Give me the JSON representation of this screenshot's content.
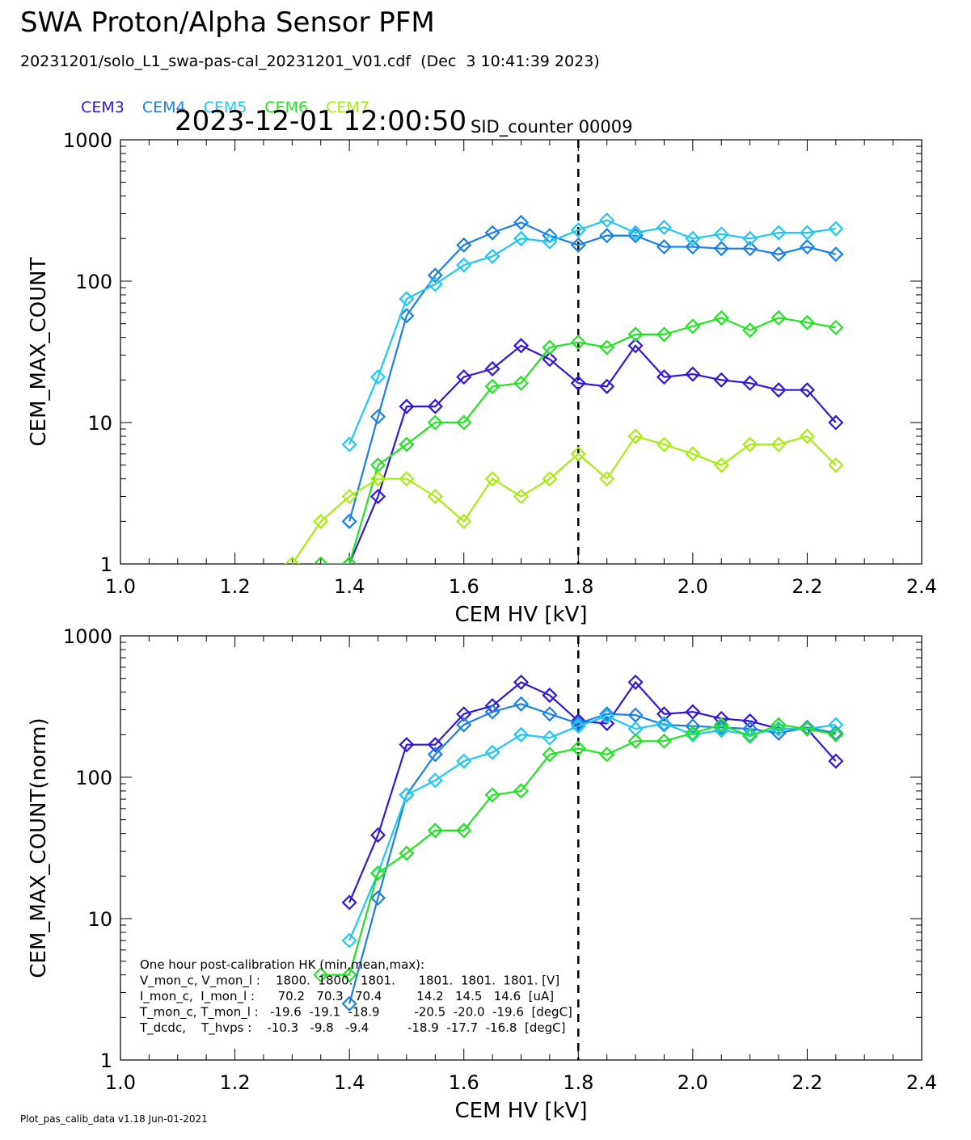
{
  "header": {
    "title": "SWA Proton/Alpha Sensor PFM",
    "file_line": "20231201/solo_L1_swa-pas-cal_20231201_V01.cdf  (Dec  3 10:41:39 2023)",
    "timestamp": "2023-12-01 12:00:50",
    "sid_counter": "SID_counter 00009"
  },
  "legend": [
    {
      "label": "CEM3",
      "color": "#3316d8"
    },
    {
      "label": "CEM4",
      "color": "#1a7fe6"
    },
    {
      "label": "CEM5",
      "color": "#1ec8f0"
    },
    {
      "label": "CEM6",
      "color": "#22e422"
    },
    {
      "label": "CEM7",
      "color": "#a6ee10"
    }
  ],
  "footer": "Plot_pas_calib_data v1.18 Jun-01-2021",
  "hk_box": {
    "lines": [
      "One hour post-calibration HK (min,mean,max):",
      "V_mon_c, V_mon_l :    1800.  1800.  1801.      1801.  1801.  1801. [V]",
      "I_mon_c,  I_mon_l :      70.2   70.3   70.4         14.2   14.5   14.6  [uA]",
      "T_mon_c, T_mon_l :   -19.6  -19.1  -18.9         -20.5  -20.0  -19.6  [degC]",
      "T_dcdc,    T_hvps :    -10.3   -9.8   -9.4          -18.9  -17.7  -16.8  [degC]"
    ]
  },
  "chart_data": [
    {
      "type": "line",
      "xlabel": "CEM HV [kV]",
      "ylabel": "CEM_MAX_COUNT",
      "xlim": [
        1.0,
        2.4
      ],
      "ylim": [
        1,
        1000
      ],
      "yscale": "log",
      "x_ticks": [
        "1.0",
        "1.2",
        "1.4",
        "1.6",
        "1.8",
        "2.0",
        "2.2",
        "2.4"
      ],
      "y_ticks": [
        "1",
        "10",
        "100",
        "1000"
      ],
      "marker": "diamond",
      "vline_x": 1.8,
      "series": [
        {
          "name": "CEM3",
          "color": "#3316d8",
          "x": [
            1.4,
            1.45,
            1.5,
            1.55,
            1.6,
            1.65,
            1.7,
            1.75,
            1.8,
            1.85,
            1.9,
            1.95,
            2.0,
            2.05,
            2.1,
            2.15,
            2.2,
            2.25
          ],
          "y": [
            1,
            3,
            13,
            13,
            21,
            24,
            35,
            28,
            19,
            18,
            35,
            21,
            22,
            20,
            19,
            17,
            17,
            10
          ]
        },
        {
          "name": "CEM4",
          "color": "#1a7fe6",
          "x": [
            1.4,
            1.45,
            1.5,
            1.55,
            1.6,
            1.65,
            1.7,
            1.75,
            1.8,
            1.85,
            1.9,
            1.95,
            2.0,
            2.05,
            2.1,
            2.15,
            2.2,
            2.25
          ],
          "y": [
            2,
            11,
            57,
            110,
            180,
            220,
            260,
            210,
            180,
            210,
            210,
            175,
            175,
            170,
            170,
            155,
            175,
            155
          ]
        },
        {
          "name": "CEM5",
          "color": "#1ec8f0",
          "x": [
            1.4,
            1.45,
            1.5,
            1.55,
            1.6,
            1.65,
            1.7,
            1.75,
            1.8,
            1.85,
            1.9,
            1.95,
            2.0,
            2.05,
            2.1,
            2.15,
            2.2,
            2.25
          ],
          "y": [
            7,
            21,
            75,
            95,
            130,
            150,
            200,
            190,
            230,
            270,
            220,
            240,
            200,
            215,
            200,
            220,
            220,
            235
          ]
        },
        {
          "name": "CEM6",
          "color": "#22e422",
          "x": [
            1.35,
            1.4,
            1.45,
            1.5,
            1.55,
            1.6,
            1.65,
            1.7,
            1.75,
            1.8,
            1.85,
            1.9,
            1.95,
            2.0,
            2.05,
            2.1,
            2.15,
            2.2,
            2.25
          ],
          "y": [
            1,
            1,
            5,
            7,
            10,
            10,
            18,
            19,
            34,
            37,
            34,
            42,
            42,
            48,
            55,
            45,
            55,
            51,
            47
          ]
        },
        {
          "name": "CEM7",
          "color": "#a6ee10",
          "x": [
            1.3,
            1.35,
            1.4,
            1.45,
            1.5,
            1.55,
            1.6,
            1.65,
            1.7,
            1.75,
            1.8,
            1.85,
            1.9,
            1.95,
            2.0,
            2.05,
            2.1,
            2.15,
            2.2,
            2.25
          ],
          "y": [
            1,
            2,
            3,
            4,
            4,
            3,
            2,
            4,
            3,
            4,
            6,
            4,
            8,
            7,
            6,
            5,
            7,
            7,
            8,
            5
          ]
        }
      ]
    },
    {
      "type": "line",
      "xlabel": "CEM HV [kV]",
      "ylabel": "CEM_MAX_COUNT(norm)",
      "xlim": [
        1.0,
        2.4
      ],
      "ylim": [
        1,
        1000
      ],
      "yscale": "log",
      "x_ticks": [
        "1.0",
        "1.2",
        "1.4",
        "1.6",
        "1.8",
        "2.0",
        "2.2",
        "2.4"
      ],
      "y_ticks": [
        "1",
        "10",
        "100",
        "1000"
      ],
      "marker": "diamond",
      "vline_x": 1.8,
      "series": [
        {
          "name": "CEM3",
          "color": "#3316d8",
          "x": [
            1.4,
            1.45,
            1.5,
            1.55,
            1.6,
            1.65,
            1.7,
            1.75,
            1.8,
            1.85,
            1.9,
            1.95,
            2.0,
            2.05,
            2.1,
            2.15,
            2.2,
            2.25
          ],
          "y": [
            13,
            39,
            170,
            170,
            280,
            320,
            470,
            380,
            250,
            240,
            470,
            280,
            290,
            260,
            250,
            220,
            220,
            130
          ]
        },
        {
          "name": "CEM4",
          "color": "#1a7fe6",
          "x": [
            1.4,
            1.45,
            1.5,
            1.55,
            1.6,
            1.65,
            1.7,
            1.75,
            1.8,
            1.85,
            1.9,
            1.95,
            2.0,
            2.05,
            2.1,
            2.15,
            2.2,
            2.25
          ],
          "y": [
            2.5,
            14,
            75,
            145,
            235,
            290,
            330,
            280,
            240,
            280,
            275,
            235,
            230,
            225,
            220,
            205,
            225,
            205
          ]
        },
        {
          "name": "CEM5",
          "color": "#1ec8f0",
          "x": [
            1.4,
            1.45,
            1.5,
            1.55,
            1.6,
            1.65,
            1.7,
            1.75,
            1.8,
            1.85,
            1.9,
            1.95,
            2.0,
            2.05,
            2.1,
            2.15,
            2.2,
            2.25
          ],
          "y": [
            7,
            21,
            75,
            95,
            130,
            150,
            200,
            190,
            230,
            270,
            220,
            240,
            200,
            215,
            200,
            220,
            220,
            235
          ]
        },
        {
          "name": "CEM6",
          "color": "#22e422",
          "x": [
            1.35,
            1.4,
            1.45,
            1.5,
            1.55,
            1.6,
            1.65,
            1.7,
            1.75,
            1.8,
            1.85,
            1.9,
            1.95,
            2.0,
            2.05,
            2.1,
            2.15,
            2.2,
            2.25
          ],
          "y": [
            4,
            4,
            21,
            29,
            42,
            42,
            75,
            80,
            145,
            160,
            145,
            180,
            180,
            205,
            235,
            195,
            235,
            220,
            200
          ]
        }
      ]
    }
  ]
}
